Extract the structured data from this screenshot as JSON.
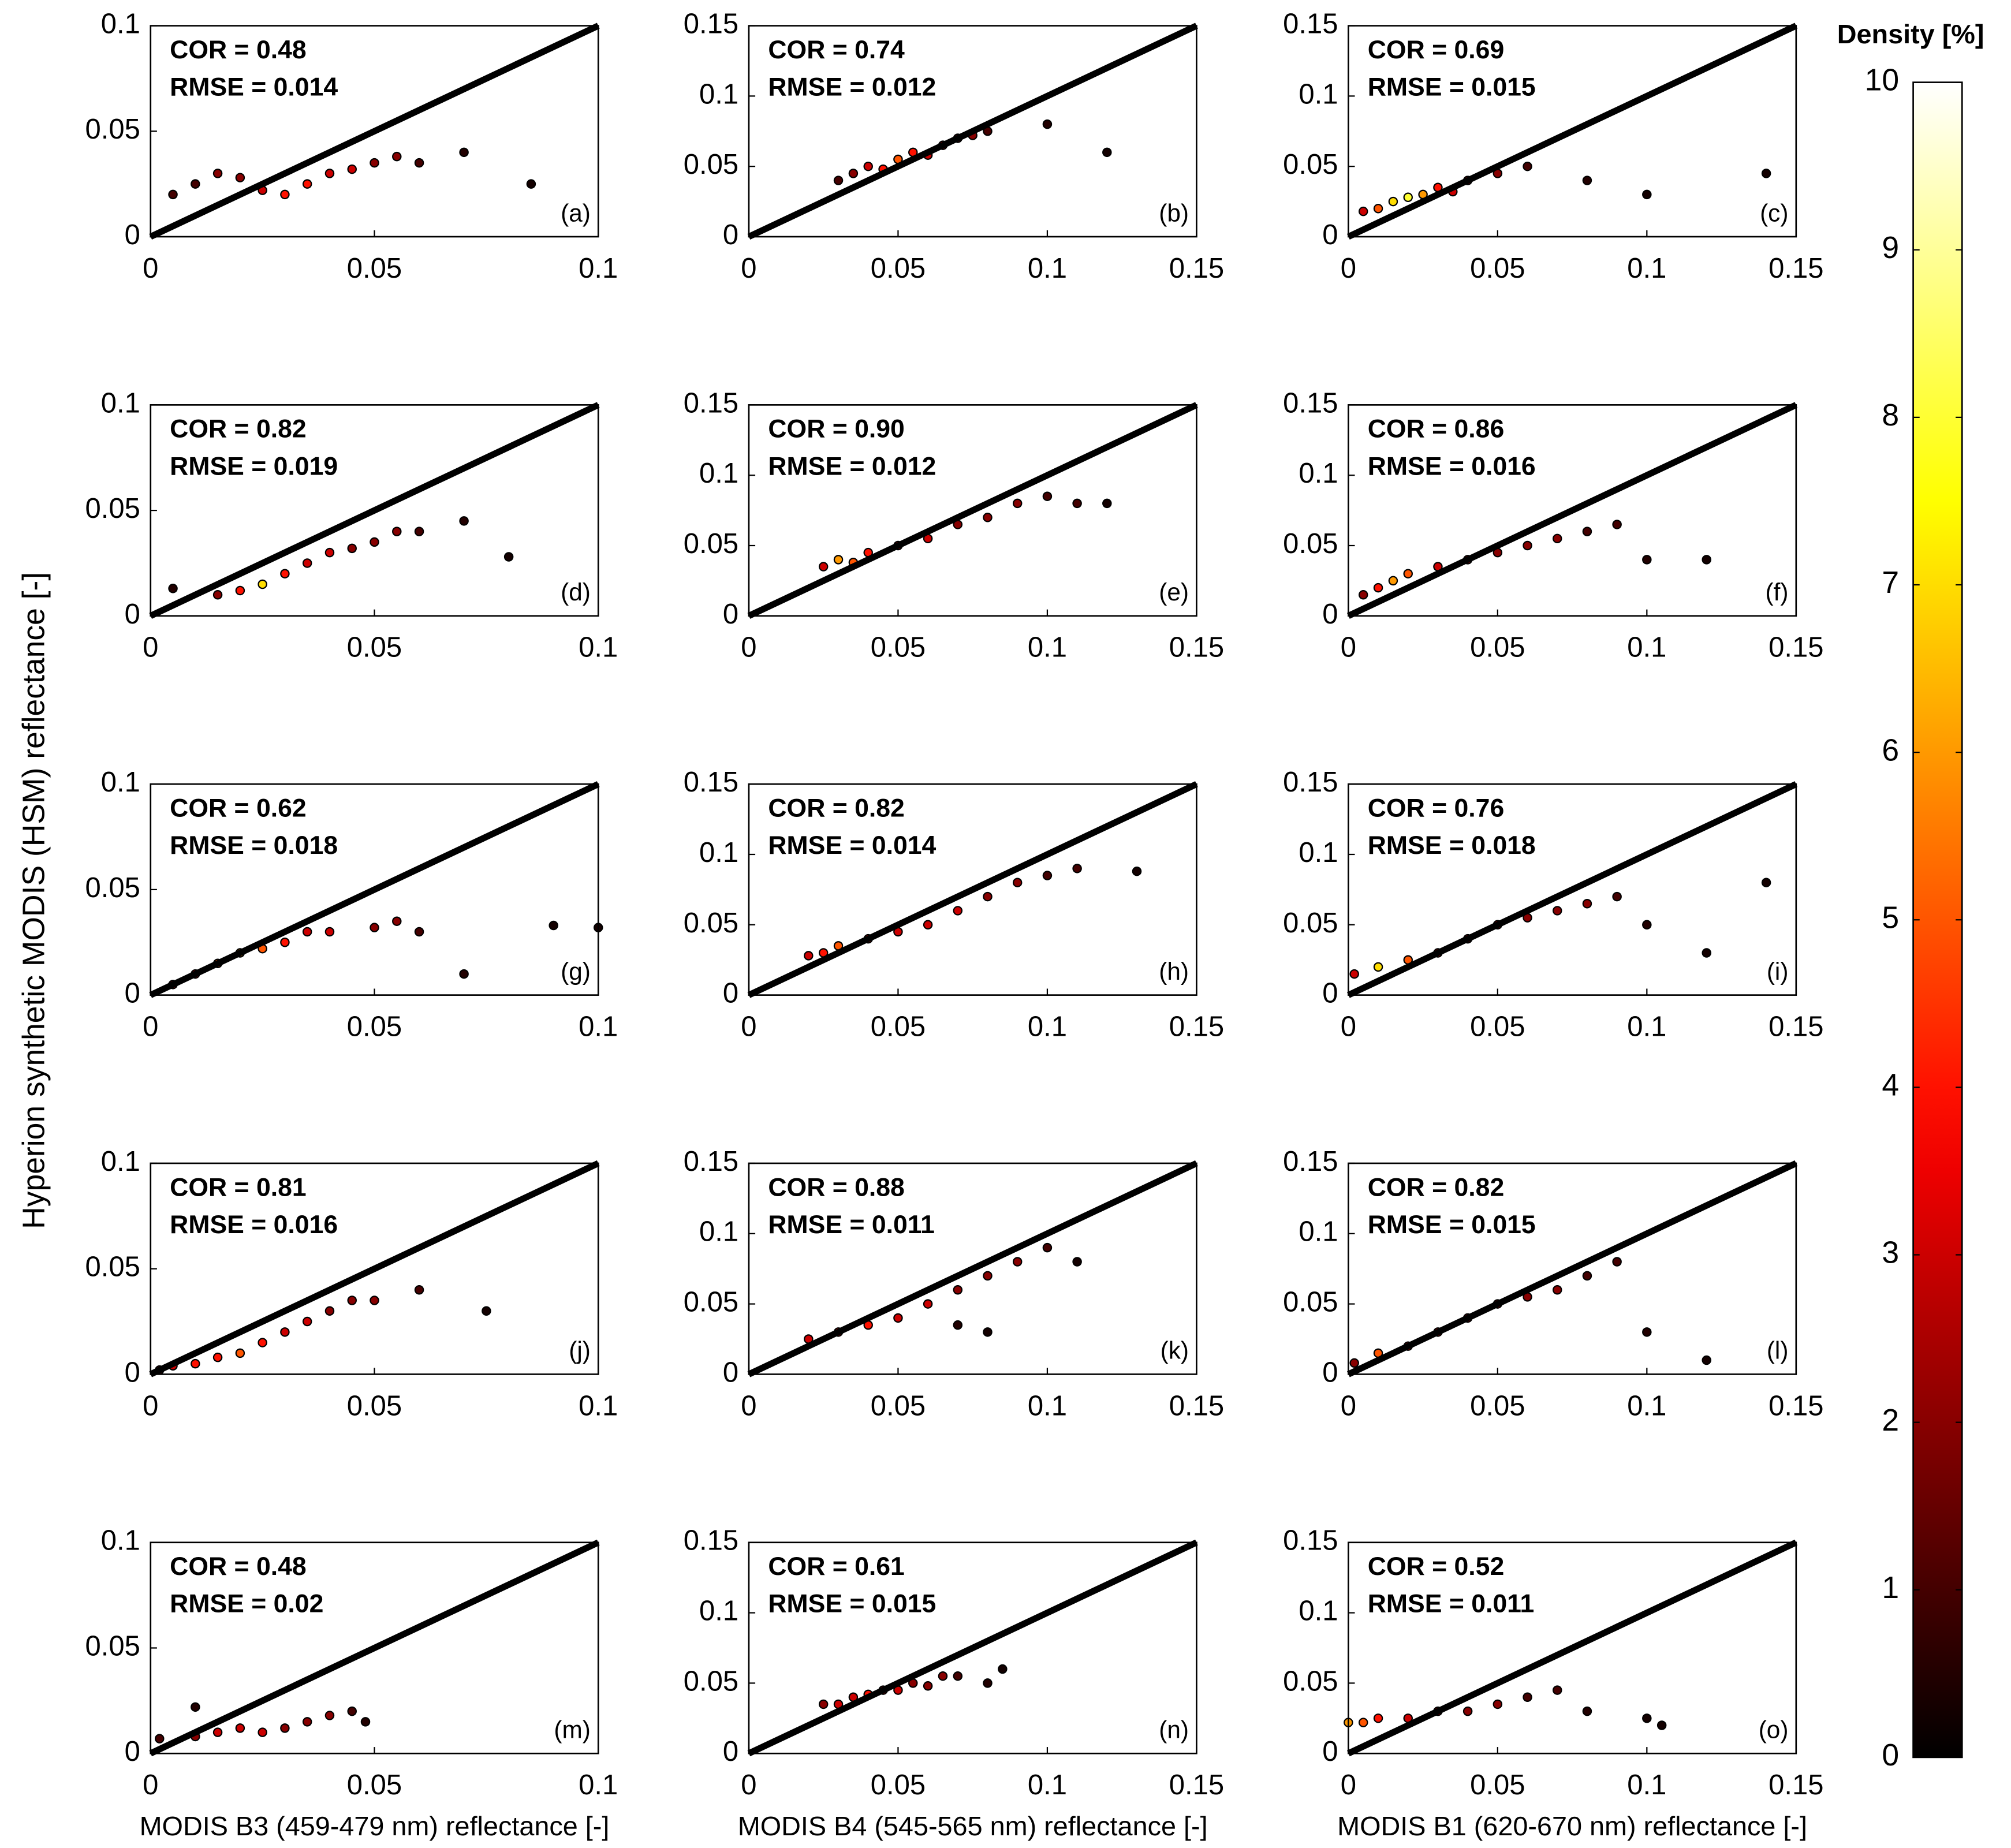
{
  "ylabel": "Hyperion synthetic MODIS (HSM) reflectance [-]",
  "colorbar": {
    "label": "Density [%]",
    "lim": [
      0,
      10
    ],
    "ticks": [
      0,
      1,
      2,
      3,
      4,
      5,
      6,
      7,
      8,
      9,
      10
    ],
    "colormap": "hot"
  },
  "chart_data": [
    {
      "type": "scatter",
      "annotations": [
        "COR = 0.48",
        "RMSE = 0.014"
      ],
      "panel_label": "(a)",
      "xlim": [
        0,
        0.1
      ],
      "ylim": [
        0,
        0.1
      ],
      "xticks": [
        0,
        0.05,
        0.1
      ],
      "yticks": [
        0,
        0.05,
        0.1
      ],
      "x": [
        0.005,
        0.01,
        0.015,
        0.02,
        0.025,
        0.03,
        0.035,
        0.04,
        0.045,
        0.05,
        0.055,
        0.06,
        0.07,
        0.085
      ],
      "y": [
        0.02,
        0.025,
        0.03,
        0.028,
        0.022,
        0.02,
        0.025,
        0.03,
        0.032,
        0.035,
        0.038,
        0.035,
        0.04,
        0.025
      ],
      "density": [
        1,
        1,
        2,
        2,
        3,
        4,
        4,
        3,
        3,
        2,
        2,
        1,
        0.5,
        0.3
      ]
    },
    {
      "type": "scatter",
      "annotations": [
        "COR = 0.74",
        "RMSE = 0.012"
      ],
      "panel_label": "(b)",
      "xlim": [
        0,
        0.15
      ],
      "ylim": [
        0,
        0.15
      ],
      "xticks": [
        0,
        0.05,
        0.1,
        0.15
      ],
      "yticks": [
        0,
        0.05,
        0.1,
        0.15
      ],
      "x": [
        0.03,
        0.035,
        0.04,
        0.045,
        0.05,
        0.055,
        0.06,
        0.065,
        0.07,
        0.075,
        0.08,
        0.1,
        0.12
      ],
      "y": [
        0.04,
        0.045,
        0.05,
        0.048,
        0.055,
        0.06,
        0.058,
        0.065,
        0.07,
        0.072,
        0.075,
        0.08,
        0.06
      ],
      "density": [
        1,
        2,
        3,
        4,
        5,
        4,
        3,
        3,
        2,
        2,
        1,
        0.5,
        0.3
      ]
    },
    {
      "type": "scatter",
      "annotations": [
        "COR = 0.69",
        "RMSE = 0.015"
      ],
      "panel_label": "(c)",
      "xlim": [
        0,
        0.15
      ],
      "ylim": [
        0,
        0.15
      ],
      "xticks": [
        0,
        0.05,
        0.1,
        0.15
      ],
      "yticks": [
        0,
        0.05,
        0.1,
        0.15
      ],
      "x": [
        0.005,
        0.01,
        0.015,
        0.02,
        0.025,
        0.03,
        0.035,
        0.04,
        0.05,
        0.06,
        0.08,
        0.1,
        0.14
      ],
      "y": [
        0.018,
        0.02,
        0.025,
        0.028,
        0.03,
        0.035,
        0.032,
        0.04,
        0.045,
        0.05,
        0.04,
        0.03,
        0.045
      ],
      "density": [
        3,
        5,
        7,
        8,
        6,
        4,
        3,
        2,
        2,
        1,
        0.5,
        0.3,
        0.3
      ]
    },
    {
      "type": "scatter",
      "annotations": [
        "COR = 0.82",
        "RMSE = 0.019"
      ],
      "panel_label": "(d)",
      "xlim": [
        0,
        0.1
      ],
      "ylim": [
        0,
        0.1
      ],
      "xticks": [
        0,
        0.05,
        0.1
      ],
      "yticks": [
        0,
        0.05,
        0.1
      ],
      "x": [
        0.005,
        0.015,
        0.02,
        0.025,
        0.03,
        0.035,
        0.04,
        0.045,
        0.05,
        0.055,
        0.06,
        0.07,
        0.08
      ],
      "y": [
        0.013,
        0.01,
        0.012,
        0.015,
        0.02,
        0.025,
        0.03,
        0.032,
        0.035,
        0.04,
        0.04,
        0.045,
        0.028
      ],
      "density": [
        0.5,
        2,
        4,
        7,
        4,
        3,
        3,
        2,
        2,
        2,
        1,
        0.5,
        0.3
      ]
    },
    {
      "type": "scatter",
      "annotations": [
        "COR = 0.90",
        "RMSE = 0.012"
      ],
      "panel_label": "(e)",
      "xlim": [
        0,
        0.15
      ],
      "ylim": [
        0,
        0.15
      ],
      "xticks": [
        0,
        0.05,
        0.1,
        0.15
      ],
      "yticks": [
        0,
        0.05,
        0.1,
        0.15
      ],
      "x": [
        0.025,
        0.03,
        0.035,
        0.04,
        0.05,
        0.06,
        0.07,
        0.08,
        0.09,
        0.1,
        0.11,
        0.12
      ],
      "y": [
        0.035,
        0.04,
        0.038,
        0.045,
        0.05,
        0.055,
        0.065,
        0.07,
        0.08,
        0.085,
        0.08,
        0.08
      ],
      "density": [
        3,
        6,
        5,
        4,
        3,
        3,
        2,
        2,
        2,
        1,
        1,
        0.3
      ]
    },
    {
      "type": "scatter",
      "annotations": [
        "COR = 0.86",
        "RMSE = 0.016"
      ],
      "panel_label": "(f)",
      "xlim": [
        0,
        0.15
      ],
      "ylim": [
        0,
        0.15
      ],
      "xticks": [
        0,
        0.05,
        0.1,
        0.15
      ],
      "yticks": [
        0,
        0.05,
        0.1,
        0.15
      ],
      "x": [
        0.005,
        0.01,
        0.015,
        0.02,
        0.03,
        0.04,
        0.05,
        0.06,
        0.07,
        0.08,
        0.09,
        0.1,
        0.12
      ],
      "y": [
        0.015,
        0.02,
        0.025,
        0.03,
        0.035,
        0.04,
        0.045,
        0.05,
        0.055,
        0.06,
        0.065,
        0.04,
        0.04
      ],
      "density": [
        2,
        4,
        6,
        5,
        3,
        3,
        2,
        2,
        2,
        1,
        1,
        0.5,
        0.3
      ]
    },
    {
      "type": "scatter",
      "annotations": [
        "COR = 0.62",
        "RMSE = 0.018"
      ],
      "panel_label": "(g)",
      "xlim": [
        0,
        0.1
      ],
      "ylim": [
        0,
        0.1
      ],
      "xticks": [
        0,
        0.05,
        0.1
      ],
      "yticks": [
        0,
        0.05,
        0.1
      ],
      "x": [
        0.005,
        0.01,
        0.015,
        0.02,
        0.025,
        0.03,
        0.035,
        0.04,
        0.05,
        0.055,
        0.06,
        0.07,
        0.09,
        0.1
      ],
      "y": [
        0.005,
        0.01,
        0.015,
        0.02,
        0.022,
        0.025,
        0.03,
        0.03,
        0.032,
        0.035,
        0.03,
        0.01,
        0.033,
        0.032
      ],
      "density": [
        2,
        3,
        5,
        6,
        5,
        4,
        3,
        3,
        2,
        2,
        1,
        0.5,
        0.3,
        0.3
      ]
    },
    {
      "type": "scatter",
      "annotations": [
        "COR = 0.82",
        "RMSE = 0.014"
      ],
      "panel_label": "(h)",
      "xlim": [
        0,
        0.15
      ],
      "ylim": [
        0,
        0.15
      ],
      "xticks": [
        0,
        0.05,
        0.1,
        0.15
      ],
      "yticks": [
        0,
        0.05,
        0.1,
        0.15
      ],
      "x": [
        0.02,
        0.025,
        0.03,
        0.04,
        0.05,
        0.06,
        0.07,
        0.08,
        0.09,
        0.1,
        0.11,
        0.13
      ],
      "y": [
        0.028,
        0.03,
        0.035,
        0.04,
        0.045,
        0.05,
        0.06,
        0.07,
        0.08,
        0.085,
        0.09,
        0.088
      ],
      "density": [
        3,
        4,
        5,
        4,
        3,
        3,
        3,
        2,
        2,
        1,
        1,
        0.3
      ]
    },
    {
      "type": "scatter",
      "annotations": [
        "COR = 0.76",
        "RMSE = 0.018"
      ],
      "panel_label": "(i)",
      "xlim": [
        0,
        0.15
      ],
      "ylim": [
        0,
        0.15
      ],
      "xticks": [
        0,
        0.05,
        0.1,
        0.15
      ],
      "yticks": [
        0,
        0.05,
        0.1,
        0.15
      ],
      "x": [
        0.002,
        0.01,
        0.02,
        0.03,
        0.04,
        0.05,
        0.06,
        0.07,
        0.08,
        0.09,
        0.1,
        0.12,
        0.14
      ],
      "y": [
        0.015,
        0.02,
        0.025,
        0.03,
        0.04,
        0.05,
        0.055,
        0.06,
        0.065,
        0.07,
        0.05,
        0.03,
        0.08
      ],
      "density": [
        3,
        7,
        5,
        4,
        3,
        3,
        2,
        2,
        2,
        1,
        0.5,
        0.3,
        0.3
      ]
    },
    {
      "type": "scatter",
      "annotations": [
        "COR = 0.81",
        "RMSE = 0.016"
      ],
      "panel_label": "(j)",
      "xlim": [
        0,
        0.1
      ],
      "ylim": [
        0,
        0.1
      ],
      "xticks": [
        0,
        0.05,
        0.1
      ],
      "yticks": [
        0,
        0.05,
        0.1
      ],
      "x": [
        0.002,
        0.005,
        0.01,
        0.015,
        0.02,
        0.025,
        0.03,
        0.035,
        0.04,
        0.045,
        0.05,
        0.06,
        0.075
      ],
      "y": [
        0.002,
        0.004,
        0.005,
        0.008,
        0.01,
        0.015,
        0.02,
        0.025,
        0.03,
        0.035,
        0.035,
        0.04,
        0.03
      ],
      "density": [
        2,
        3,
        4,
        4,
        5,
        4,
        3,
        3,
        2,
        2,
        2,
        1,
        0.3
      ]
    },
    {
      "type": "scatter",
      "annotations": [
        "COR = 0.88",
        "RMSE = 0.011"
      ],
      "panel_label": "(k)",
      "xlim": [
        0,
        0.15
      ],
      "ylim": [
        0,
        0.15
      ],
      "xticks": [
        0,
        0.05,
        0.1,
        0.15
      ],
      "yticks": [
        0,
        0.05,
        0.1,
        0.15
      ],
      "x": [
        0.02,
        0.03,
        0.04,
        0.05,
        0.06,
        0.07,
        0.08,
        0.09,
        0.1,
        0.07,
        0.08,
        0.11
      ],
      "y": [
        0.025,
        0.03,
        0.035,
        0.04,
        0.05,
        0.06,
        0.07,
        0.08,
        0.09,
        0.035,
        0.03,
        0.08
      ],
      "density": [
        3,
        4,
        4,
        3,
        3,
        2,
        2,
        2,
        1,
        0.5,
        0.3,
        0.3
      ]
    },
    {
      "type": "scatter",
      "annotations": [
        "COR = 0.82",
        "RMSE = 0.015"
      ],
      "panel_label": "(l)",
      "xlim": [
        0,
        0.15
      ],
      "ylim": [
        0,
        0.15
      ],
      "xticks": [
        0,
        0.05,
        0.1,
        0.15
      ],
      "yticks": [
        0,
        0.05,
        0.1,
        0.15
      ],
      "x": [
        0.002,
        0.01,
        0.02,
        0.03,
        0.04,
        0.05,
        0.06,
        0.07,
        0.08,
        0.09,
        0.1,
        0.12
      ],
      "y": [
        0.008,
        0.015,
        0.02,
        0.03,
        0.04,
        0.05,
        0.055,
        0.06,
        0.07,
        0.08,
        0.03,
        0.01
      ],
      "density": [
        2,
        5,
        4,
        4,
        3,
        3,
        2,
        2,
        1,
        1,
        0.5,
        0.3
      ]
    },
    {
      "type": "scatter",
      "annotations": [
        "COR = 0.48",
        "RMSE = 0.02"
      ],
      "panel_label": "(m)",
      "xlabel": "MODIS B3 (459-479 nm) reflectance [-]",
      "xlim": [
        0,
        0.1
      ],
      "ylim": [
        0,
        0.1
      ],
      "xticks": [
        0,
        0.05,
        0.1
      ],
      "yticks": [
        0,
        0.05,
        0.1
      ],
      "x": [
        0.002,
        0.01,
        0.015,
        0.02,
        0.025,
        0.03,
        0.035,
        0.04,
        0.045,
        0.048,
        0.01
      ],
      "y": [
        0.007,
        0.008,
        0.01,
        0.012,
        0.01,
        0.012,
        0.015,
        0.018,
        0.02,
        0.015,
        0.022
      ],
      "density": [
        1,
        2,
        3,
        3,
        3,
        2,
        2,
        2,
        1,
        0.5,
        0.5
      ]
    },
    {
      "type": "scatter",
      "annotations": [
        "COR = 0.61",
        "RMSE = 0.015"
      ],
      "panel_label": "(n)",
      "xlabel": "MODIS B4 (545-565 nm) reflectance [-]",
      "xlim": [
        0,
        0.15
      ],
      "ylim": [
        0,
        0.15
      ],
      "xticks": [
        0,
        0.05,
        0.1,
        0.15
      ],
      "yticks": [
        0,
        0.05,
        0.1,
        0.15
      ],
      "x": [
        0.025,
        0.03,
        0.035,
        0.04,
        0.045,
        0.05,
        0.055,
        0.06,
        0.065,
        0.07,
        0.08,
        0.085
      ],
      "y": [
        0.035,
        0.035,
        0.04,
        0.042,
        0.045,
        0.045,
        0.05,
        0.048,
        0.055,
        0.055,
        0.05,
        0.06
      ],
      "density": [
        2,
        3,
        3,
        4,
        3,
        3,
        2,
        2,
        2,
        1,
        0.5,
        0.3
      ]
    },
    {
      "type": "scatter",
      "annotations": [
        "COR = 0.52",
        "RMSE = 0.011"
      ],
      "panel_label": "(o)",
      "xlabel": "MODIS B1 (620-670 nm) reflectance [-]",
      "xlim": [
        0,
        0.15
      ],
      "ylim": [
        0,
        0.15
      ],
      "xticks": [
        0,
        0.05,
        0.1,
        0.15
      ],
      "yticks": [
        0,
        0.05,
        0.1,
        0.15
      ],
      "x": [
        0,
        0.005,
        0.01,
        0.02,
        0.03,
        0.04,
        0.05,
        0.06,
        0.07,
        0.08,
        0.1,
        0.105
      ],
      "y": [
        0.022,
        0.022,
        0.025,
        0.025,
        0.03,
        0.03,
        0.035,
        0.04,
        0.045,
        0.03,
        0.025,
        0.02
      ],
      "density": [
        6,
        5,
        4,
        3,
        3,
        2,
        2,
        1,
        1,
        0.5,
        0.3,
        0.3
      ]
    }
  ]
}
